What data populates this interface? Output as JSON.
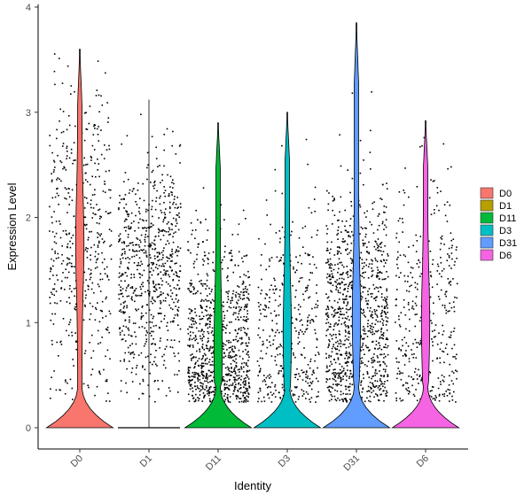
{
  "chart_data": {
    "type": "violin",
    "title": "",
    "xlabel": "Identity",
    "ylabel": "Expression Level",
    "ylim": [
      -0.2,
      4.05
    ],
    "yticks": [
      0,
      1,
      2,
      3,
      4
    ],
    "grid": false,
    "legend_position": "right",
    "categories": [
      "D0",
      "D1",
      "D11",
      "D3",
      "D31",
      "D6"
    ],
    "colors": [
      "#F8766D",
      "#B79F00",
      "#00BA38",
      "#00BFC4",
      "#619CFF",
      "#F564E3"
    ],
    "series": [
      {
        "name": "D0",
        "max": 3.6,
        "dot_density": 0.55,
        "dot_mean": 1.75,
        "dot_spread": 0.75
      },
      {
        "name": "D1",
        "max": 3.12,
        "dot_density": 0.8,
        "dot_mean": 1.45,
        "dot_spread": 0.55
      },
      {
        "name": "D11",
        "max": 2.9,
        "dot_density": 1.0,
        "dot_mean": 0.75,
        "dot_spread": 0.55
      },
      {
        "name": "D3",
        "max": 3.0,
        "dot_density": 0.45,
        "dot_mean": 0.9,
        "dot_spread": 0.65
      },
      {
        "name": "D31",
        "max": 3.85,
        "dot_density": 1.15,
        "dot_mean": 1.05,
        "dot_spread": 0.6
      },
      {
        "name": "D6",
        "max": 2.92,
        "dot_density": 0.45,
        "dot_mean": 1.0,
        "dot_spread": 0.65
      }
    ]
  }
}
